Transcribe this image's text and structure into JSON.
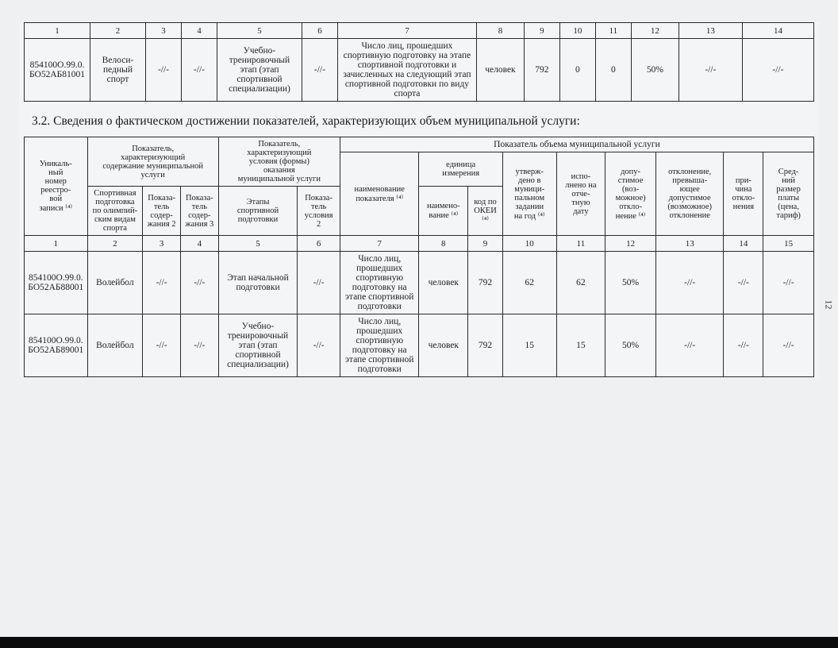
{
  "page_number": "12",
  "top_table": {
    "num_row": [
      "1",
      "2",
      "3",
      "4",
      "5",
      "6",
      "7",
      "8",
      "9",
      "10",
      "11",
      "12",
      "13",
      "14"
    ],
    "col_widths_pct": [
      8.3,
      7,
      4.5,
      4.5,
      10.7,
      4.5,
      17.5,
      6,
      4.5,
      4.5,
      4.5,
      6,
      8,
      9
    ],
    "row": {
      "c1": "854100О.99.0.БО52АБ81001",
      "c2": "Велоси-\nпедный\nспорт",
      "c3": "-//-",
      "c4": "-//-",
      "c5": "Учебно-\nтренировочный\nэтап (этап\nспортивной\nспециализации)",
      "c6": "-//-",
      "c7": "Число лиц, прошедших спортивную подготовку на этапе спортивной подготовки и зачисленных на следующий этап спортивной подготовки по виду спорта",
      "c8": "человек",
      "c9": "792",
      "c10": "0",
      "c11": "0",
      "c12": "50%",
      "c13": "-//-",
      "c14": "-//-"
    }
  },
  "section_title": "3.2. Сведения о фактическом достижении показателей, характеризующих объем муниципальной услуги:",
  "main_table": {
    "col_widths_pct": [
      8,
      7,
      4.8,
      4.8,
      10,
      5.4,
      10,
      6.2,
      4.4,
      6.8,
      6.2,
      6.4,
      8.6,
      5,
      6.4
    ],
    "headers": {
      "h_unique": "Уникаль-\nный\nномер\nреестро-\nвой\nзаписи ⁽⁴⁾",
      "h_char_content": "Показатель,\nхарактеризующий\nсодержание муниципальной\nуслуги",
      "h_char_cond": "Показатель,\nхарактеризующий\nусловия (формы)\nоказания\nмуниципальной услуги",
      "h_volume": "Показатель объема муниципальной услуги",
      "h_name_ind": "наименование\nпоказателя ⁽⁴⁾",
      "h_unit": "единица\nизмерения",
      "h_approved": "утверж-\nдено в\nмуници-\nпальном\nзадании\nна год ⁽⁴⁾",
      "h_exec": "испо-\nлнено на\nотче-\nтную\nдату",
      "h_allow": "допу-\nстимое\n(воз-\nможное)\nоткло-\nнение ⁽⁴⁾",
      "h_excess": "отклонение,\nпревыша-\nющее\nдопустимое\n(возможное)\nотклонение",
      "h_reason": "при-\nчина\nоткло-\nнения",
      "h_avg": "Сред-\nний\nразмер\nплаты\n(цена,\nтариф)",
      "h_sport": "Спортивная\nподготовка\nпо олимпий-\nским видам\nспорта",
      "h_ind2": "Показа-\nтель\nсодер-\nжания 2",
      "h_ind3": "Показа-\nтель\nсодер-\nжания 3",
      "h_stages": "Этапы\nспортивной\nподготовки",
      "h_cond2": "Показа-\nтель\nусловия\n2",
      "h_unit_name": "наимено-\nвание ⁽⁴⁾",
      "h_okei": "код по\nОКЕИ\n⁽⁴⁾"
    },
    "num_row": [
      "1",
      "2",
      "3",
      "4",
      "5",
      "6",
      "7",
      "8",
      "9",
      "10",
      "11",
      "12",
      "13",
      "14",
      "15"
    ],
    "rows": [
      {
        "c1": "854100О.99.0.БО52АБ88001",
        "c2": "Волейбол",
        "c3": "-//-",
        "c4": "-//-",
        "c5": "Этап начальной подготовки",
        "c6": "-//-",
        "c7": "Число лиц, прошедших спортивную подготовку на этапе спортивной подготовки",
        "c8": "человек",
        "c9": "792",
        "c10": "62",
        "c11": "62",
        "c12": "50%",
        "c13": "-//-",
        "c14": "-//-",
        "c15": "-//-"
      },
      {
        "c1": "854100О.99.0.БО52АБ89001",
        "c2": "Волейбол",
        "c3": "-//-",
        "c4": "-//-",
        "c5": "Учебно-\nтренировочный\nэтап (этап\nспортивной\nспециализации)",
        "c6": "-//-",
        "c7": "Число лиц, прошедших спортивную подготовку на этапе спортивной подготовки",
        "c8": "человек",
        "c9": "792",
        "c10": "15",
        "c11": "15",
        "c12": "50%",
        "c13": "-//-",
        "c14": "-//-",
        "c15": "-//-"
      }
    ]
  },
  "colors": {
    "page_bg": "#e6e8ea",
    "paper_bg": "#f2f4f6",
    "border": "#2a2a2a",
    "text": "#222222",
    "footer": "#0b0b0b"
  }
}
